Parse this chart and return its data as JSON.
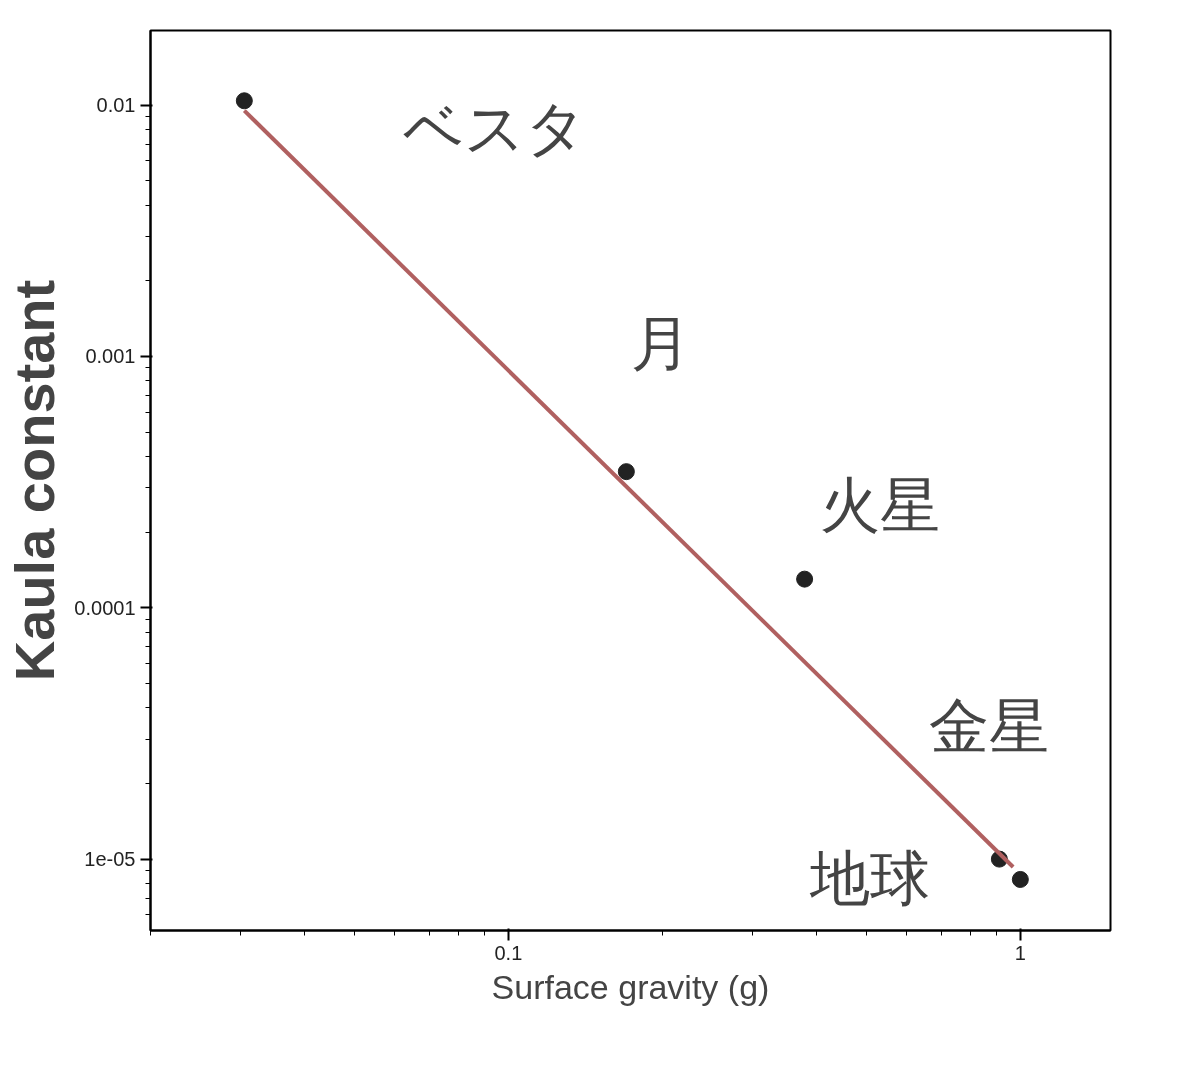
{
  "chart_data": {
    "type": "scatter",
    "xlabel": "Surface gravity (g)",
    "ylabel": "Kaula constant",
    "log": "xy",
    "xlim": [
      0.02,
      1.5
    ],
    "ylim": [
      5.2e-06,
      0.0198
    ],
    "xticks": [
      0.1,
      1
    ],
    "yticks": [
      0.01,
      0.001,
      0.0001,
      {
        "value": 1e-05,
        "label": "1e-05"
      }
    ],
    "marker": "circle",
    "grid": false,
    "series": [
      {
        "color": "#222222",
        "x": [
          0.0305,
          0.17,
          0.379,
          0.91,
          1.0
        ],
        "values": [
          0.0104,
          0.000348,
          0.00013,
          1e-05,
          8.3e-06
        ]
      },
      {
        "type": "line",
        "marker": "none",
        "color": "#b06060",
        "x": [
          0.0305,
          0.968
        ],
        "values": [
          0.0095,
          9.3e-06
        ]
      }
    ],
    "annotations": [
      "ベスタ",
      "月",
      "火星",
      "金星",
      "地球"
    ]
  }
}
